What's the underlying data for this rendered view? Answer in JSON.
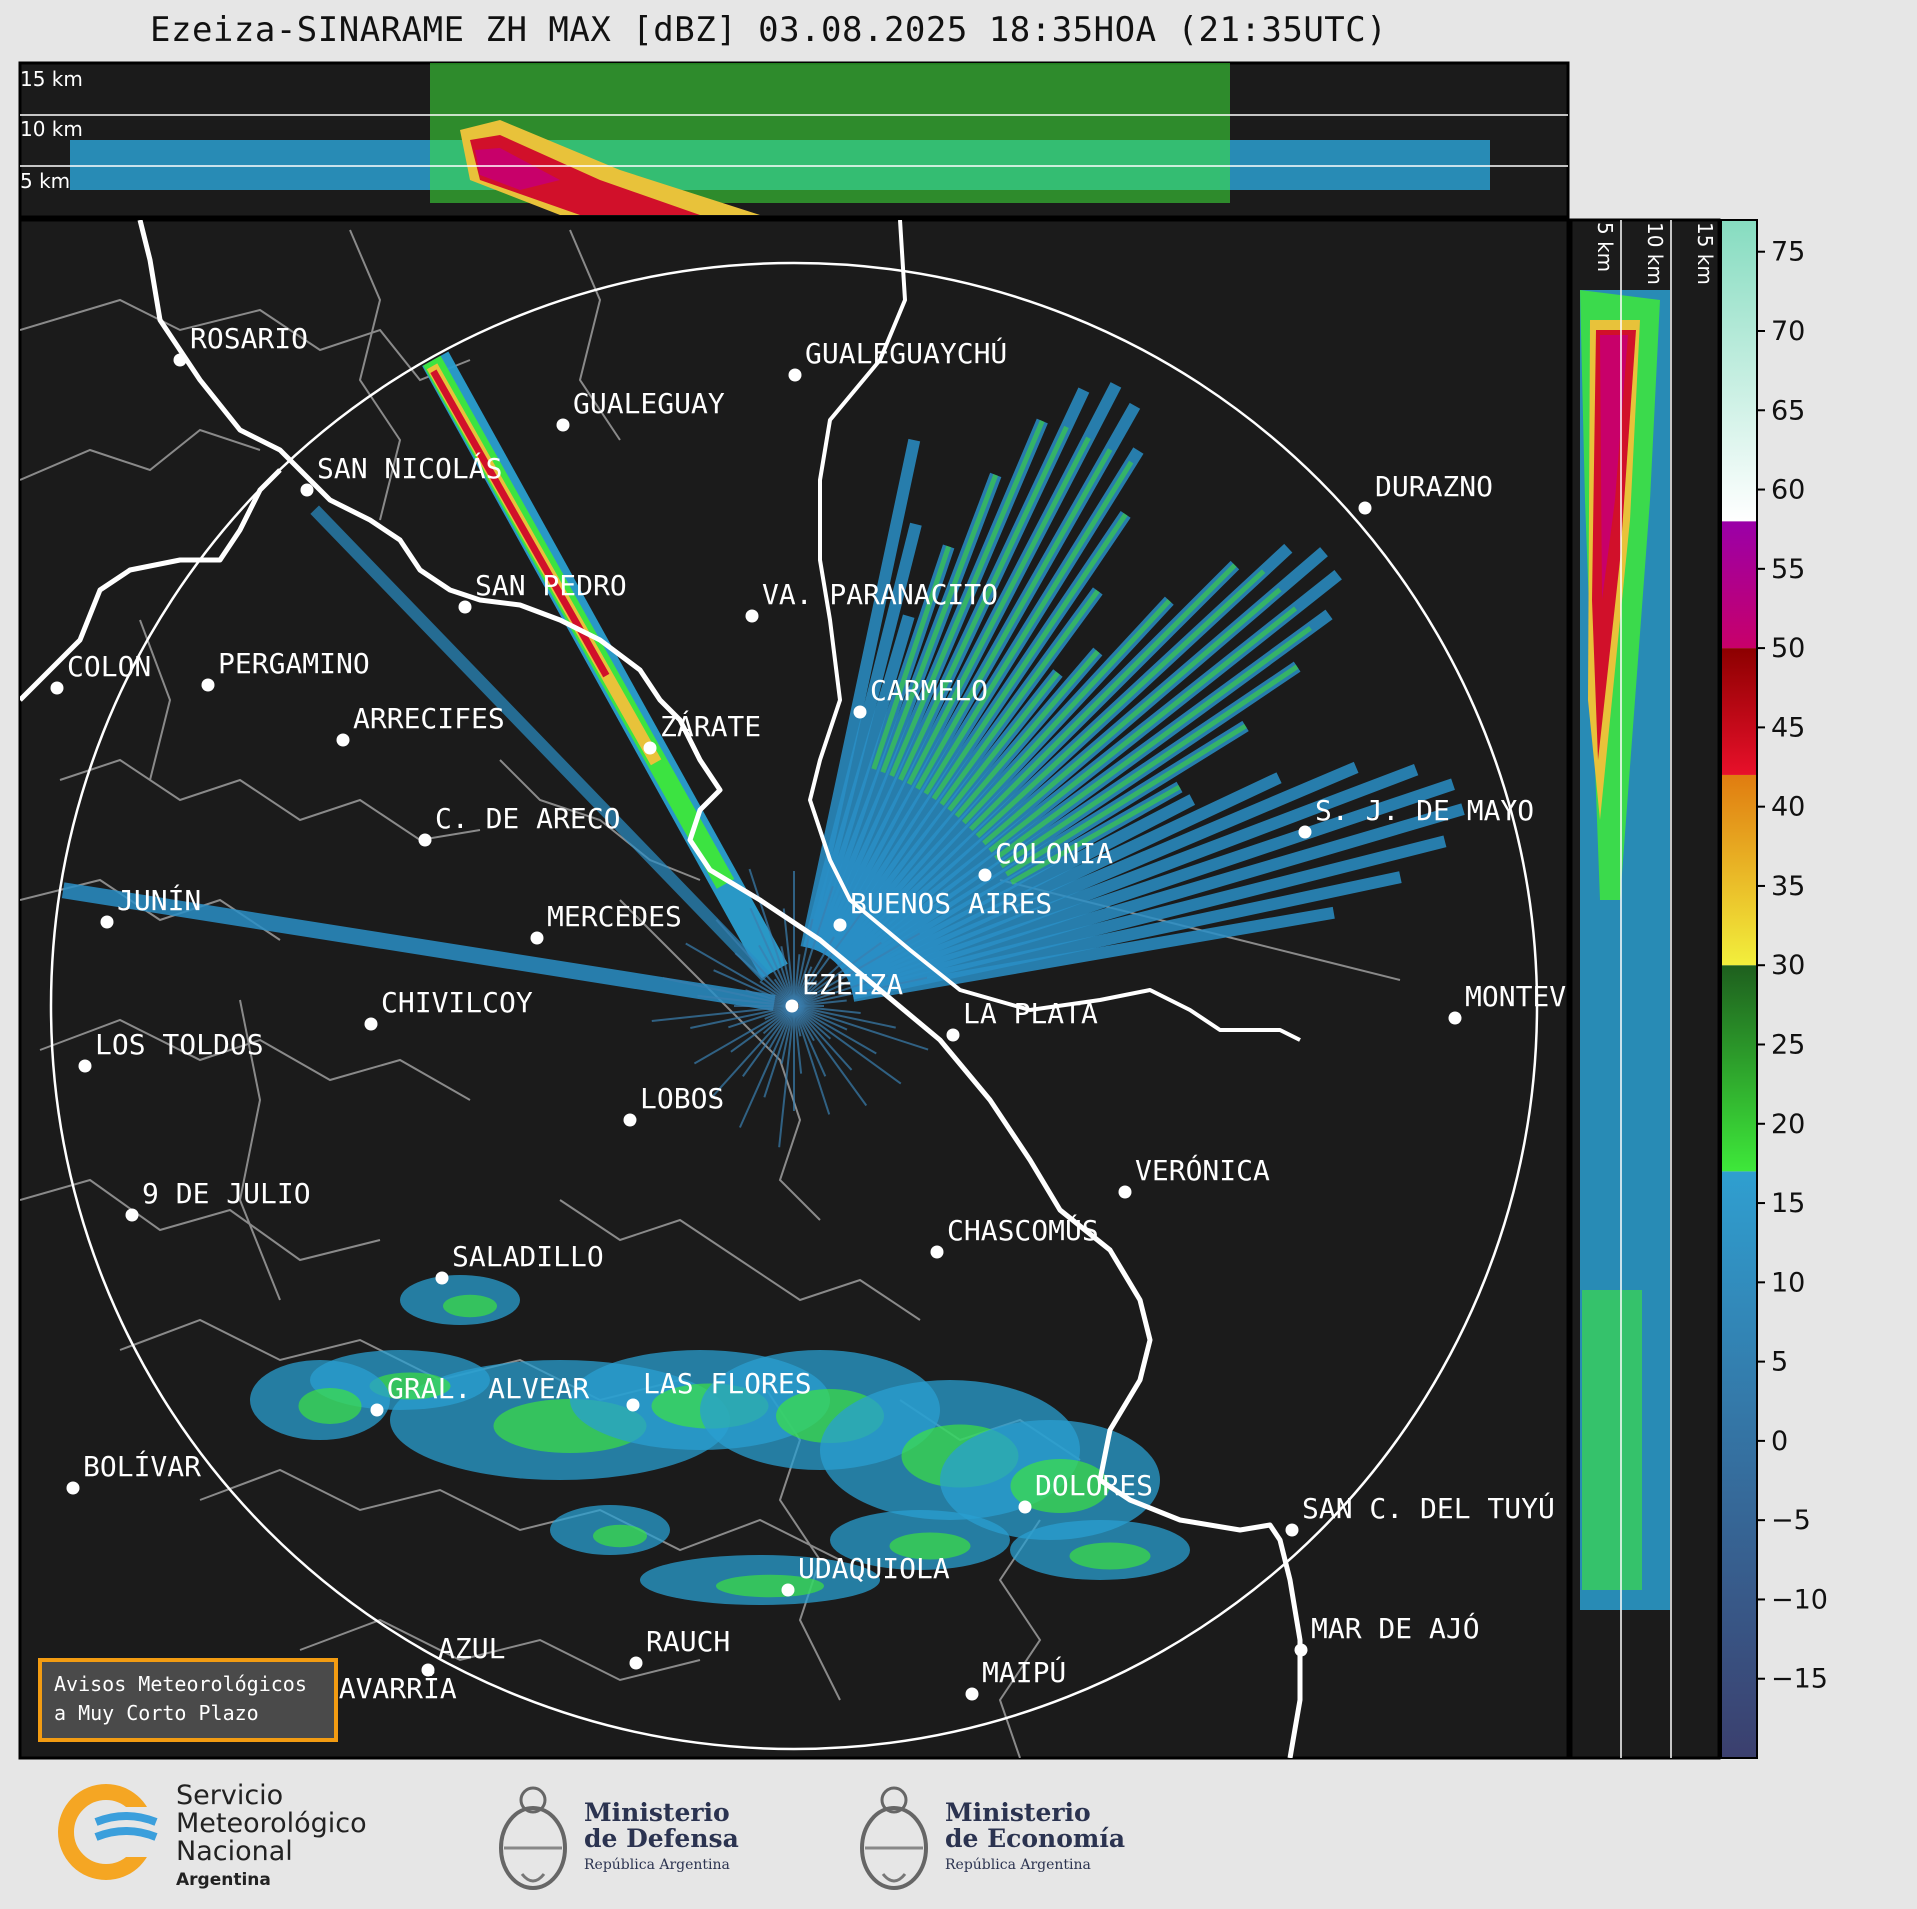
{
  "title": "Ezeiza-SINARAME ZH MAX [dBZ] 03.08.2025 18:35HOA (21:35UTC)",
  "top_panel_altitudes": [
    "15 km",
    "10 km",
    "5 km"
  ],
  "side_panel_altitudes": [
    "5 km",
    "10 km",
    "15 km"
  ],
  "colorbar": {
    "unit": "dBZ",
    "ticks": [
      "75",
      "70",
      "65",
      "60",
      "55",
      "50",
      "45",
      "40",
      "35",
      "30",
      "25",
      "20",
      "15",
      "10",
      "5",
      "0",
      "−5",
      "−10",
      "−15"
    ],
    "range": [
      -20,
      77
    ],
    "bands": [
      {
        "from": -20,
        "to": 17,
        "color_bottom": "#3b3f6e",
        "color_top": "#2f9fd0"
      },
      {
        "from": 17,
        "to": 30,
        "color_bottom": "#3ee83a",
        "color_top": "#1e5f1e"
      },
      {
        "from": 30,
        "to": 42,
        "color_bottom": "#f2ef3c",
        "color_top": "#e07c10"
      },
      {
        "from": 42,
        "to": 50,
        "color_bottom": "#e8102a",
        "color_top": "#8c0000"
      },
      {
        "from": 50,
        "to": 58,
        "color_bottom": "#c8006a",
        "color_top": "#9a00a8"
      },
      {
        "from": 58,
        "to": 77,
        "color_bottom": "#ffffff",
        "color_top": "#86dcc0"
      }
    ]
  },
  "radar_site": "EZEIZA",
  "cities": [
    {
      "name": "ROSARIO"
    },
    {
      "name": "GUALEGUAYCHÚ"
    },
    {
      "name": "GUALEGUAY"
    },
    {
      "name": "SAN NICOLÁS"
    },
    {
      "name": "DURAZNO"
    },
    {
      "name": "SAN PEDRO"
    },
    {
      "name": "VA. PARANACITO"
    },
    {
      "name": "COLON"
    },
    {
      "name": "PERGAMINO"
    },
    {
      "name": "CARMELO"
    },
    {
      "name": "ARRECIFES"
    },
    {
      "name": "ZÁRATE"
    },
    {
      "name": "S. J. DE MAYO"
    },
    {
      "name": "C. DE ARECO"
    },
    {
      "name": "COLONIA"
    },
    {
      "name": "BUENOS AIRES"
    },
    {
      "name": "JUNÍN"
    },
    {
      "name": "MERCEDES"
    },
    {
      "name": "EZEIZA"
    },
    {
      "name": "MONTEV"
    },
    {
      "name": "CHIVILCOY"
    },
    {
      "name": "LA PLATA"
    },
    {
      "name": "LOS TOLDOS"
    },
    {
      "name": "LOBOS"
    },
    {
      "name": "VERÓNICA"
    },
    {
      "name": "9 DE JULIO"
    },
    {
      "name": "CHASCOMÚS"
    },
    {
      "name": "SALADILLO"
    },
    {
      "name": "GRAL. ALVEAR"
    },
    {
      "name": "LAS FLORES"
    },
    {
      "name": "BOLÍVAR"
    },
    {
      "name": "DOLORES"
    },
    {
      "name": "SAN C. DEL TUYÚ"
    },
    {
      "name": "UDAQUIOLA"
    },
    {
      "name": "MAR DE AJÓ"
    },
    {
      "name": "AZUL"
    },
    {
      "name": "RAUCH"
    },
    {
      "name": "MAIPÚ"
    },
    {
      "name": "OLAVARRÍA"
    }
  ],
  "notice": {
    "line1": "Avisos Meteorológicos",
    "line2": "a Muy Corto Plazo"
  },
  "footer": {
    "smn": {
      "line1": "Servicio",
      "line2": "Meteorológico",
      "line3": "Nacional",
      "line4": "Argentina"
    },
    "defensa": {
      "line1": "Ministerio",
      "line2": "de Defensa",
      "line3": "República Argentina"
    },
    "economia": {
      "line1": "Ministerio",
      "line2": "de Economía",
      "line3": "República Argentina"
    }
  },
  "colors": {
    "map_bg": "#1b1b1b",
    "coast": "#ffffff",
    "borders": "#8a8a8a",
    "notice_border": "#f39c12"
  }
}
